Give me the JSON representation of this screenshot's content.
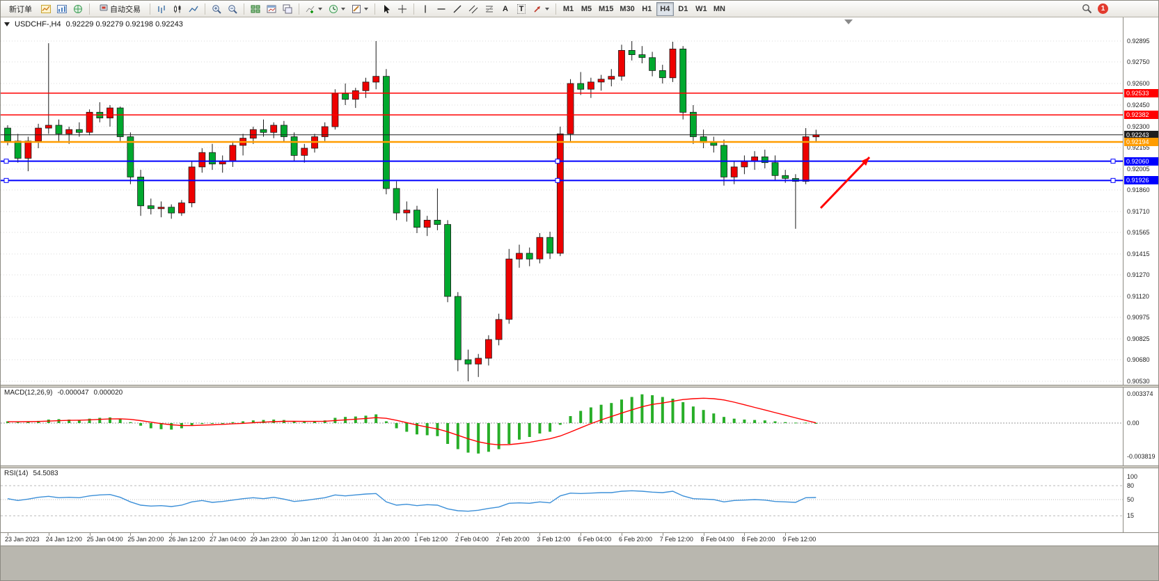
{
  "toolbar": {
    "new_order": "新订单",
    "auto_trading": "自动交易",
    "timeframes": [
      "M1",
      "M5",
      "M15",
      "M30",
      "H1",
      "H4",
      "D1",
      "W1",
      "MN"
    ],
    "active_timeframe": "H4",
    "notification_badge": "1",
    "glyphs": {
      "text_tool": "A",
      "label_tool": "T"
    }
  },
  "chart": {
    "symbol_title": "USDCHF-,H4",
    "ohlc": "0.92229  0.92279  0.92198  0.92243",
    "colors": {
      "up": "#ee0000",
      "down": "#00a92e",
      "wick": "#1a1a1a",
      "grid": "#d9d9d9",
      "macd_hist": "#28ae28",
      "macd_signal": "#ff0000",
      "rsi_line": "#3b8fd8"
    }
  },
  "chart_data": {
    "type": "candlestick",
    "symbol": "USDCHF",
    "timeframe": "H4",
    "last_ohlc": {
      "open": "0.92229",
      "high": "0.92279",
      "low": "0.92198",
      "close": "0.92243"
    },
    "y_axis": {
      "ticks": [
        "0.92895",
        "0.92750",
        "0.92600",
        "0.92450",
        "0.92300",
        "0.92155",
        "0.92005",
        "0.91860",
        "0.91710",
        "0.91565",
        "0.91415",
        "0.91270",
        "0.91120",
        "0.90975",
        "0.90825",
        "0.90680",
        "0.90530"
      ]
    },
    "time_labels": [
      "23 Jan 2023",
      "24 Jan 12:00",
      "25 Jan 04:00",
      "25 Jan 20:00",
      "26 Jan 12:00",
      "27 Jan 04:00",
      "29 Jan 23:00",
      "30 Jan 12:00",
      "31 Jan 04:00",
      "31 Jan 20:00",
      "1 Feb 12:00",
      "2 Feb 04:00",
      "2 Feb 20:00",
      "3 Feb 12:00",
      "6 Feb 04:00",
      "6 Feb 20:00",
      "7 Feb 12:00",
      "8 Feb 04:00",
      "8 Feb 20:00",
      "9 Feb 12:00"
    ],
    "candles": [
      [
        0.9229,
        0.9231,
        0.9217,
        0.922
      ],
      [
        0.922,
        0.9225,
        0.9205,
        0.9208
      ],
      [
        0.9208,
        0.9223,
        0.9199,
        0.922
      ],
      [
        0.922,
        0.9232,
        0.9215,
        0.9229
      ],
      [
        0.9229,
        0.9288,
        0.9225,
        0.9231
      ],
      [
        0.9231,
        0.9235,
        0.922,
        0.9225
      ],
      [
        0.9225,
        0.923,
        0.9218,
        0.9228
      ],
      [
        0.9228,
        0.9233,
        0.9223,
        0.9226
      ],
      [
        0.9226,
        0.9242,
        0.9224,
        0.924
      ],
      [
        0.924,
        0.9247,
        0.9233,
        0.9236
      ],
      [
        0.9236,
        0.9245,
        0.923,
        0.9243
      ],
      [
        0.9243,
        0.9244,
        0.922,
        0.9223
      ],
      [
        0.9223,
        0.9226,
        0.919,
        0.9195
      ],
      [
        0.9195,
        0.92,
        0.9168,
        0.9175
      ],
      [
        0.9175,
        0.918,
        0.9169,
        0.9173
      ],
      [
        0.9173,
        0.9178,
        0.9167,
        0.9174
      ],
      [
        0.9174,
        0.9176,
        0.9166,
        0.917
      ],
      [
        0.917,
        0.9179,
        0.9168,
        0.9177
      ],
      [
        0.9177,
        0.9206,
        0.9174,
        0.9202
      ],
      [
        0.9202,
        0.9215,
        0.9198,
        0.9212
      ],
      [
        0.9212,
        0.9218,
        0.92,
        0.9204
      ],
      [
        0.9204,
        0.921,
        0.9198,
        0.9206
      ],
      [
        0.9206,
        0.922,
        0.9202,
        0.9217
      ],
      [
        0.9217,
        0.9225,
        0.921,
        0.9222
      ],
      [
        0.9222,
        0.923,
        0.9218,
        0.9228
      ],
      [
        0.9228,
        0.9235,
        0.9223,
        0.9226
      ],
      [
        0.9226,
        0.9233,
        0.9222,
        0.9231
      ],
      [
        0.9231,
        0.9234,
        0.9219,
        0.9223
      ],
      [
        0.9223,
        0.9226,
        0.9206,
        0.921
      ],
      [
        0.921,
        0.9218,
        0.9205,
        0.9215
      ],
      [
        0.9215,
        0.9225,
        0.9212,
        0.9223
      ],
      [
        0.9223,
        0.9233,
        0.922,
        0.923
      ],
      [
        0.923,
        0.9256,
        0.9228,
        0.9253
      ],
      [
        0.9253,
        0.926,
        0.9245,
        0.9249
      ],
      [
        0.9249,
        0.9257,
        0.9243,
        0.9255
      ],
      [
        0.9255,
        0.9264,
        0.925,
        0.9261
      ],
      [
        0.9261,
        0.92895,
        0.9256,
        0.9265
      ],
      [
        0.9265,
        0.927,
        0.9183,
        0.9187
      ],
      [
        0.9187,
        0.9192,
        0.9165,
        0.917
      ],
      [
        0.917,
        0.9178,
        0.9164,
        0.9172
      ],
      [
        0.9172,
        0.9175,
        0.9156,
        0.916
      ],
      [
        0.916,
        0.9168,
        0.9154,
        0.9165
      ],
      [
        0.9165,
        0.9187,
        0.9158,
        0.9162
      ],
      [
        0.9162,
        0.9165,
        0.9108,
        0.9112
      ],
      [
        0.9112,
        0.9115,
        0.906,
        0.9068
      ],
      [
        0.9068,
        0.9075,
        0.9053,
        0.9065
      ],
      [
        0.9065,
        0.9072,
        0.9056,
        0.9069
      ],
      [
        0.9069,
        0.9085,
        0.9064,
        0.9082
      ],
      [
        0.9082,
        0.91,
        0.9078,
        0.9096
      ],
      [
        0.9096,
        0.9145,
        0.9093,
        0.9138
      ],
      [
        0.9138,
        0.9148,
        0.9132,
        0.9142
      ],
      [
        0.9142,
        0.9146,
        0.9133,
        0.9138
      ],
      [
        0.9138,
        0.9156,
        0.9135,
        0.9153
      ],
      [
        0.9153,
        0.9157,
        0.9138,
        0.9142
      ],
      [
        0.9142,
        0.923,
        0.914,
        0.9225
      ],
      [
        0.9225,
        0.9263,
        0.922,
        0.926
      ],
      [
        0.926,
        0.9268,
        0.9252,
        0.9256
      ],
      [
        0.9256,
        0.9264,
        0.925,
        0.9261
      ],
      [
        0.9261,
        0.9266,
        0.9255,
        0.9263
      ],
      [
        0.9263,
        0.927,
        0.9258,
        0.9265
      ],
      [
        0.9265,
        0.9287,
        0.9262,
        0.9283
      ],
      [
        0.9283,
        0.92895,
        0.9276,
        0.928
      ],
      [
        0.928,
        0.9286,
        0.9274,
        0.9278
      ],
      [
        0.9278,
        0.9282,
        0.9265,
        0.9269
      ],
      [
        0.9269,
        0.9273,
        0.926,
        0.9264
      ],
      [
        0.9264,
        0.9289,
        0.9261,
        0.9284
      ],
      [
        0.9284,
        0.9286,
        0.9235,
        0.924
      ],
      [
        0.924,
        0.9245,
        0.9218,
        0.9223
      ],
      [
        0.9223,
        0.9228,
        0.9215,
        0.9219
      ],
      [
        0.9219,
        0.9223,
        0.9212,
        0.9217
      ],
      [
        0.9217,
        0.9221,
        0.9189,
        0.9195
      ],
      [
        0.9195,
        0.9206,
        0.919,
        0.9202
      ],
      [
        0.9202,
        0.921,
        0.9197,
        0.9206
      ],
      [
        0.9206,
        0.9213,
        0.92,
        0.9209
      ],
      [
        0.9209,
        0.9214,
        0.9201,
        0.9205
      ],
      [
        0.9205,
        0.921,
        0.9193,
        0.9196
      ],
      [
        0.9196,
        0.92,
        0.9191,
        0.9194
      ],
      [
        0.9194,
        0.9197,
        0.9159,
        0.9192
      ],
      [
        0.9192,
        0.9229,
        0.919,
        0.9223
      ],
      [
        0.92229,
        0.92279,
        0.92198,
        0.92243
      ]
    ],
    "hlines": [
      {
        "price": 0.92533,
        "label": "0.92533",
        "color": "#ff0000",
        "width": 1.5
      },
      {
        "price": 0.92382,
        "label": "0.92382",
        "color": "#ff0000",
        "width": 1.5
      },
      {
        "price": 0.92243,
        "label": "0.92243",
        "color": "#1f1f1f",
        "width": 1
      },
      {
        "price": 0.92194,
        "label": "0.92194",
        "color": "#ff9c00",
        "width": 2.5
      },
      {
        "price": 0.9206,
        "label": "0.92060",
        "color": "#0000ff",
        "width": 2,
        "selected": true
      },
      {
        "price": 0.91926,
        "label": "0.91926",
        "color": "#0000ff",
        "width": 2,
        "selected": true
      }
    ],
    "annotations": [
      {
        "type": "arrow",
        "from": [
          1178,
          274
        ],
        "to": [
          1248,
          201
        ],
        "color": "#ff0000",
        "width": 3
      }
    ],
    "macd": {
      "label": "MACD(12,26,9)",
      "value_main": "-0.000047",
      "value_signal": "0.000020",
      "scale": [
        "0.003374",
        "0.00",
        "-0.003819"
      ],
      "hist": [
        0.0002,
        0.0001,
        0.00015,
        0.00025,
        0.0004,
        0.00045,
        0.0004,
        0.00035,
        0.0005,
        0.0006,
        0.00065,
        0.0005,
        0.0001,
        -0.0003,
        -0.0006,
        -0.0007,
        -0.00075,
        -0.0006,
        -0.0003,
        -0.0001,
        -5e-05,
        0.0,
        0.0001,
        0.0002,
        0.0003,
        0.00035,
        0.0004,
        0.00035,
        0.0002,
        0.00015,
        0.0002,
        0.0003,
        0.0006,
        0.0007,
        0.00075,
        0.00085,
        0.001,
        0.0002,
        -0.0006,
        -0.001,
        -0.0013,
        -0.0014,
        -0.0015,
        -0.0024,
        -0.003,
        -0.0034,
        -0.0035,
        -0.0033,
        -0.003,
        -0.0024,
        -0.0019,
        -0.0016,
        -0.0012,
        -0.001,
        -0.0002,
        0.0008,
        0.0014,
        0.0018,
        0.0021,
        0.0023,
        0.0027,
        0.003,
        0.0033,
        0.0032,
        0.003,
        0.0028,
        0.0024,
        0.0019,
        0.0015,
        0.0011,
        0.0007,
        0.0005,
        0.0004,
        0.00035,
        0.0003,
        0.0002,
        0.0001,
        5e-05,
        5e-05,
        -4.7e-05
      ],
      "signal": [
        0.00015,
        0.00015,
        0.00016,
        0.00018,
        0.00022,
        0.00027,
        0.00031,
        0.00033,
        0.00037,
        0.00042,
        0.00047,
        0.00049,
        0.00042,
        0.00028,
        0.0001,
        -6e-05,
        -0.0002,
        -0.00028,
        -0.00029,
        -0.00025,
        -0.0002,
        -0.00015,
        -9e-05,
        -3e-05,
        4e-05,
        0.0001,
        0.00016,
        0.0002,
        0.0002,
        0.00019,
        0.00019,
        0.00021,
        0.00029,
        0.00037,
        0.00045,
        0.00053,
        0.00062,
        0.00054,
        0.00031,
        5e-05,
        -0.00022,
        -0.00046,
        -0.00067,
        -0.00101,
        -0.00141,
        -0.00181,
        -0.00215,
        -0.00238,
        -0.0025,
        -0.00248,
        -0.00236,
        -0.00221,
        -0.00201,
        -0.00181,
        -0.00149,
        -0.00103,
        -0.00054,
        -7e-05,
        0.00036,
        0.00075,
        0.00114,
        0.00151,
        0.00187,
        0.00214,
        0.0023,
        0.0025,
        0.0027,
        0.0028,
        0.00285,
        0.0028,
        0.00265,
        0.0024,
        0.0021,
        0.0018,
        0.0015,
        0.0012,
        0.0009,
        0.0006,
        0.0003,
        2e-05
      ]
    },
    "rsi": {
      "label": "RSI(14)",
      "value": "54.5083",
      "scale": [
        "100",
        "80",
        "50",
        "15"
      ],
      "levels": [
        80,
        50,
        15
      ],
      "series": [
        52,
        48,
        51,
        55,
        57,
        54,
        55,
        54,
        58,
        60,
        61,
        55,
        45,
        38,
        36,
        37,
        35,
        38,
        45,
        48,
        44,
        46,
        49,
        52,
        54,
        52,
        55,
        51,
        46,
        48,
        51,
        54,
        60,
        58,
        60,
        62,
        63,
        45,
        38,
        40,
        37,
        39,
        38,
        30,
        26,
        25,
        27,
        31,
        34,
        42,
        43,
        42,
        45,
        43,
        58,
        64,
        63,
        64,
        65,
        65,
        68,
        69,
        68,
        66,
        65,
        68,
        58,
        52,
        51,
        50,
        45,
        48,
        49,
        50,
        49,
        46,
        45,
        44,
        54,
        54.5
      ]
    }
  }
}
